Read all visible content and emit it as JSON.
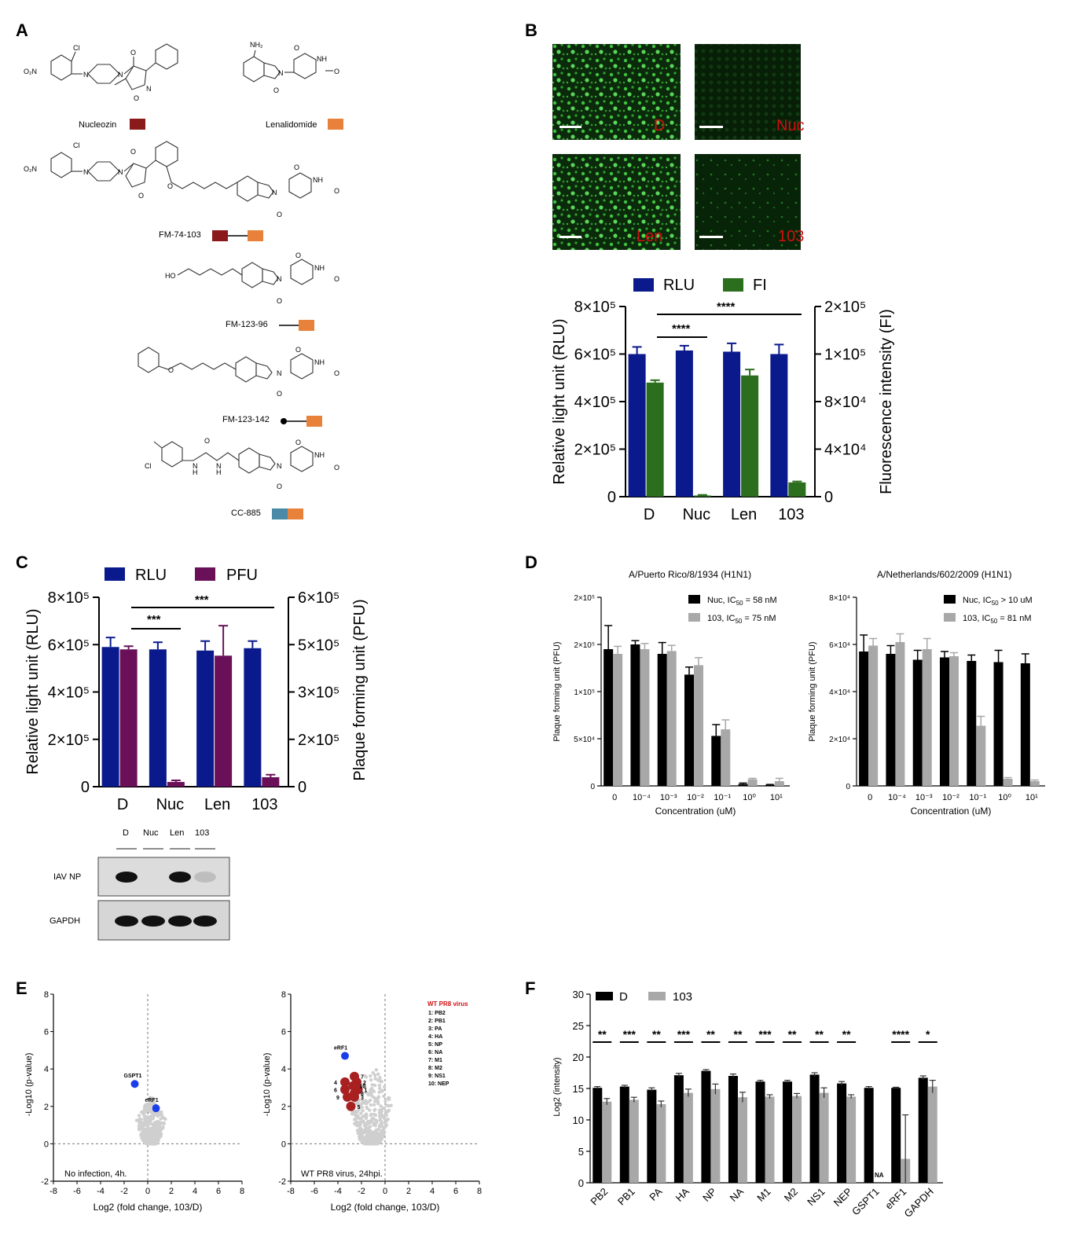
{
  "panels": {
    "A": "A",
    "B": "B",
    "C": "C",
    "D": "D",
    "E": "E",
    "F": "F"
  },
  "colors": {
    "rlu": "#0a1a8c",
    "fi": "#2b6e1e",
    "pfu": "#6a1058",
    "black": "#000000",
    "grey": "#a8a8a8",
    "nucleozin": "#8b1a1a",
    "lenalidomide": "#e8823a",
    "cc885": "#4a8aa8",
    "red_text": "#d01010",
    "hit": "#1a3ee8",
    "viral": "#a82020"
  },
  "panelA": {
    "compounds": [
      "Nucleozin",
      "Lenalidomide",
      "FM-74-103",
      "FM-123-96",
      "FM-123-142",
      "CC-885"
    ],
    "atoms": {
      "o2n": "O₂N",
      "cl": "Cl",
      "n": "N",
      "o": "O",
      "nh": "NH",
      "nh2": "NH₂",
      "ho": "HO",
      "h": "H"
    }
  },
  "panelB": {
    "images": [
      "D",
      "Nuc",
      "Len",
      "103"
    ],
    "chart_data": {
      "type": "bar",
      "categories": [
        "D",
        "Nuc",
        "Len",
        "103"
      ],
      "series": [
        {
          "name": "RLU",
          "axis": "left",
          "values": [
            600000,
            615000,
            610000,
            600000
          ],
          "errors": [
            30000,
            20000,
            35000,
            40000
          ]
        },
        {
          "name": "FI",
          "axis": "right",
          "values": [
            96000,
            1000,
            102000,
            12000
          ],
          "errors": [
            2000,
            500,
            5000,
            800
          ]
        }
      ],
      "ylabel": "Relative light unit (RLU)",
      "y2label": "Fluorescence intensity (FI)",
      "ylim": [
        0,
        800000
      ],
      "y2lim": [
        0,
        160000
      ],
      "yticks": [
        "0",
        "2×10⁵",
        "4×10⁵",
        "6×10⁵",
        "8×10⁵"
      ],
      "y2ticks": [
        "0",
        "4×10⁴",
        "8×10⁴",
        "1×10⁵",
        "2×10⁵"
      ],
      "sig": [
        "****",
        "****"
      ]
    }
  },
  "panelC": {
    "chart_data": {
      "type": "bar",
      "categories": [
        "D",
        "Nuc",
        "Len",
        "103"
      ],
      "series": [
        {
          "name": "RLU",
          "axis": "left",
          "values": [
            590000,
            580000,
            575000,
            585000
          ],
          "errors": [
            40000,
            30000,
            40000,
            30000
          ]
        },
        {
          "name": "PFU",
          "axis": "right",
          "values": [
            435000,
            15000,
            415000,
            30000
          ],
          "errors": [
            10000,
            5000,
            95000,
            8000
          ]
        }
      ],
      "ylabel": "Relative light unit (RLU)",
      "y2label": "Plaque forming unit (PFU)",
      "ylim": [
        0,
        800000
      ],
      "y2lim": [
        0,
        600000
      ],
      "yticks": [
        "0",
        "2×10⁵",
        "4×10⁵",
        "6×10⁵",
        "8×10⁵"
      ],
      "y2ticks": [
        "0",
        "2×10⁵",
        "3×10⁵",
        "5×10⁵",
        "6×10⁵"
      ],
      "sig": [
        "***",
        "***"
      ]
    },
    "blot": {
      "lanes": [
        "D",
        "Nuc",
        "Len",
        "103"
      ],
      "rows": [
        "IAV NP",
        "GAPDH"
      ],
      "np_intensity": [
        1,
        0,
        1,
        0.15
      ],
      "gapdh_intensity": [
        1,
        1,
        1,
        1
      ]
    }
  },
  "panelD": {
    "chart_data": [
      {
        "type": "bar",
        "title": "A/Puerto Rico/8/1934 (H1N1)",
        "xlabel": "Concentration (uM)",
        "ylabel": "Plaque forming unit (PFU)",
        "categories": [
          "0",
          "10⁻⁴",
          "10⁻³",
          "10⁻²",
          "10⁻¹",
          "10⁰",
          "10¹"
        ],
        "yticks": [
          "0",
          "5×10⁴",
          "1×10⁵",
          "2×10⁵",
          "2×10⁵"
        ],
        "ylim": [
          0,
          200000
        ],
        "series": [
          {
            "name": "Nuc, IC50 = 58 nM",
            "values": [
              145000,
              150000,
              140000,
              118000,
              53000,
              2000,
              1000
            ],
            "errors": [
              25000,
              4000,
              12000,
              8000,
              12000,
              1000,
              500
            ]
          },
          {
            "name": "103, IC50 = 75 nM",
            "values": [
              140000,
              145000,
              143000,
              128000,
              60000,
              7000,
              5000
            ],
            "errors": [
              8000,
              6000,
              6000,
              8000,
              10000,
              1000,
              3000
            ]
          }
        ]
      },
      {
        "type": "bar",
        "title": "A/Netherlands/602/2009 (H1N1)",
        "xlabel": "Concentration (uM)",
        "ylabel": "Plaque forming unit (PFU)",
        "categories": [
          "0",
          "10⁻⁴",
          "10⁻³",
          "10⁻²",
          "10⁻¹",
          "10⁰",
          "10¹"
        ],
        "yticks": [
          "0",
          "2×10⁴",
          "4×10⁴",
          "6×10⁴",
          "8×10⁴"
        ],
        "ylim": [
          0,
          80000
        ],
        "series": [
          {
            "name": "Nuc, IC50 > 10 uM",
            "values": [
              57000,
              56000,
              53500,
              54500,
              53000,
              52500,
              52000
            ],
            "errors": [
              7000,
              3500,
              4000,
              2500,
              2500,
              5000,
              4000
            ]
          },
          {
            "name": "103, IC50 = 81 nM",
            "values": [
              59500,
              61000,
              58000,
              55000,
              25500,
              3000,
              2000
            ],
            "errors": [
              3000,
              3500,
              4500,
              1500,
              4000,
              500,
              500
            ]
          }
        ]
      }
    ],
    "legend": [
      {
        "pre": "Nuc, IC",
        "sub": "50",
        "post": " = 58 nM"
      },
      {
        "pre": "103, IC",
        "sub": "50",
        "post": " = 75 nM"
      },
      {
        "pre": "Nuc, IC",
        "sub": "50",
        "post": " > 10 uM"
      },
      {
        "pre": "103, IC",
        "sub": "50",
        "post": " = 81 nM"
      }
    ]
  },
  "panelE": {
    "chart_data": [
      {
        "type": "scatter",
        "xlabel": "Log2 (fold change, 103/D)",
        "ylabel": "-Log10 (p-value)",
        "xlim": [
          -8,
          8
        ],
        "ylim": [
          -2,
          8
        ],
        "annotation": "No infection, 4h.",
        "highlight": [
          {
            "label": "GSPT1",
            "x": -1.1,
            "y": 3.2
          },
          {
            "label": "eRF1",
            "x": 0.7,
            "y": 1.9
          }
        ]
      },
      {
        "type": "scatter",
        "xlabel": "Log2 (fold change, 103/D)",
        "ylabel": "-Log10 (p-value)",
        "xlim": [
          -8,
          8
        ],
        "ylim": [
          -2,
          8
        ],
        "annotation": "WT PR8 virus, 24hpi.",
        "highlight": [
          {
            "label": "eRF1",
            "x": -3.4,
            "y": 4.7
          }
        ],
        "viral": [
          {
            "n": "1",
            "x": -2.3,
            "y": 2.9
          },
          {
            "n": "2",
            "x": -2.4,
            "y": 3.3
          },
          {
            "n": "3",
            "x": -2.6,
            "y": 2.5
          },
          {
            "n": "4",
            "x": -3.4,
            "y": 3.3
          },
          {
            "n": "5",
            "x": -2.9,
            "y": 2.0
          },
          {
            "n": "6",
            "x": -3.4,
            "y": 2.9
          },
          {
            "n": "7",
            "x": -2.6,
            "y": 3.6
          },
          {
            "n": "8",
            "x": -2.6,
            "y": 2.7
          },
          {
            "n": "9",
            "x": -3.2,
            "y": 2.5
          },
          {
            "n": "10",
            "x": -2.7,
            "y": 3.1
          }
        ],
        "legend_title": "WT PR8 virus",
        "legend": [
          "1:  PB2",
          "2:  PB1",
          "3:  PA",
          "4:  HA",
          "5:  NP",
          "6:  NA",
          "7:  M1",
          "8:  M2",
          "9:  NS1",
          "10: NEP"
        ]
      }
    ],
    "xticks": [
      "-8",
      "-6",
      "-4",
      "-2",
      "0",
      "2",
      "4",
      "6",
      "8"
    ],
    "yticks": [
      "-2",
      "0",
      "2",
      "4",
      "6",
      "8"
    ]
  },
  "panelF": {
    "chart_data": {
      "type": "bar",
      "ylabel": "Log2 (intensity)",
      "ylim": [
        0,
        30
      ],
      "yticks": [
        "0",
        "5",
        "10",
        "15",
        "20",
        "25",
        "30"
      ],
      "categories": [
        "PB2",
        "PB1",
        "PA",
        "HA",
        "NP",
        "NA",
        "M1",
        "M2",
        "NS1",
        "NEP",
        "GSPT1",
        "eRF1",
        "GAPDH"
      ],
      "series": [
        {
          "name": "D",
          "values": [
            15.1,
            15.3,
            14.8,
            17.1,
            17.8,
            17.0,
            16.1,
            16.1,
            17.2,
            15.8,
            15.1,
            15.1,
            16.7
          ],
          "errors": [
            0.2,
            0.2,
            0.3,
            0.3,
            0.2,
            0.3,
            0.2,
            0.2,
            0.3,
            0.3,
            0.2,
            0.1,
            0.3
          ]
        },
        {
          "name": "103",
          "values": [
            12.9,
            13.2,
            12.5,
            14.3,
            14.9,
            13.6,
            13.7,
            13.8,
            14.3,
            13.7,
            0,
            3.8,
            15.3
          ],
          "errors": [
            0.5,
            0.4,
            0.5,
            0.6,
            0.8,
            0.8,
            0.3,
            0.4,
            0.8,
            0.3,
            0,
            7.0,
            1.0
          ]
        }
      ],
      "sig": [
        "**",
        "***",
        "**",
        "***",
        "**",
        "**",
        "***",
        "**",
        "**",
        "**",
        "",
        "****",
        "*"
      ],
      "na_label": "NA"
    }
  }
}
